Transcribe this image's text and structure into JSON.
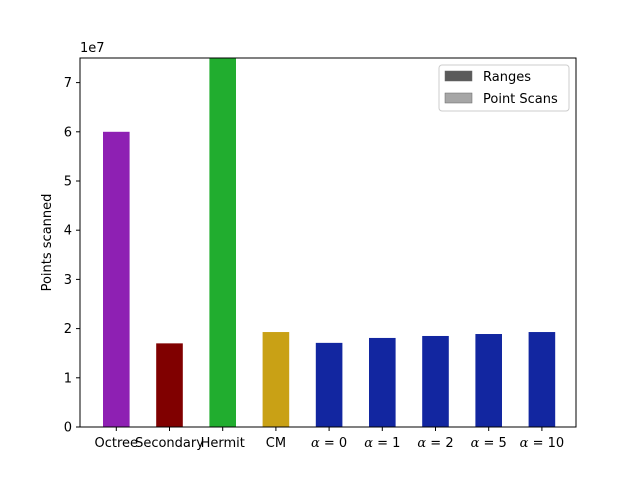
{
  "chart_data": {
    "type": "bar",
    "ylabel": "Points scanned",
    "y_offset_label": "1e7",
    "ylim": [
      0,
      75000000
    ],
    "y_ticks": [
      0,
      10000000,
      20000000,
      30000000,
      40000000,
      50000000,
      60000000,
      70000000
    ],
    "y_tick_labels": [
      "0",
      "1",
      "2",
      "3",
      "4",
      "5",
      "6",
      "7"
    ],
    "categories": [
      {
        "label": "Octree",
        "italic_prefix": "",
        "rest": "Octree"
      },
      {
        "label": "Secondary",
        "italic_prefix": "",
        "rest": "Secondary"
      },
      {
        "label": "Hermit",
        "italic_prefix": "",
        "rest": "Hermit"
      },
      {
        "label": "CM",
        "italic_prefix": "",
        "rest": "CM"
      },
      {
        "label": "α = 0",
        "italic_prefix": "α",
        "rest": " = 0"
      },
      {
        "label": "α = 1",
        "italic_prefix": "α",
        "rest": " = 1"
      },
      {
        "label": "α = 2",
        "italic_prefix": "α",
        "rest": " = 2"
      },
      {
        "label": "α = 5",
        "italic_prefix": "α",
        "rest": " = 5"
      },
      {
        "label": "α = 10",
        "italic_prefix": "α",
        "rest": " = 10"
      }
    ],
    "values": [
      60000000,
      17000000,
      75000000,
      19300000,
      17100000,
      18100000,
      18500000,
      18900000,
      19300000
    ],
    "bar_colors": [
      "#8e20b3",
      "#800000",
      "#21ad2f",
      "#c9a115",
      "#1226a0",
      "#1226a0",
      "#1226a0",
      "#1226a0",
      "#1226a0"
    ],
    "legend": {
      "placement": "top-right",
      "entries": [
        {
          "name": "Ranges",
          "color": "#5a5a5a"
        },
        {
          "name": "Point Scans",
          "color": "#a6a6a6"
        }
      ]
    },
    "grid": false
  }
}
